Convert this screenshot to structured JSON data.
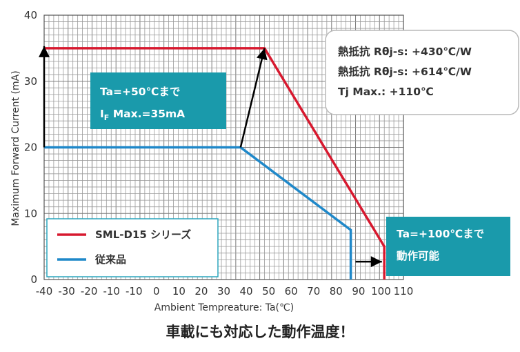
{
  "chart_data": {
    "type": "line",
    "title": "車載にも対応した動作温度！",
    "xlabel": "Ambient Tempreature: Ta(℃)",
    "ylabel": "Maximum Forward Current (mA)",
    "xlim": [
      -40,
      110
    ],
    "ylim": [
      0,
      40
    ],
    "x_ticks": [
      "-40",
      "-30",
      "-20",
      "-10",
      "-10",
      "0",
      "10",
      "20",
      "30",
      "40",
      "50",
      "60",
      "70",
      "80",
      "90",
      "100",
      "110"
    ],
    "y_ticks": [
      "0",
      "10",
      "20",
      "30",
      "40"
    ],
    "grid": true,
    "legend_position": "bottom-left",
    "series": [
      {
        "name": "SML-D15 シリーズ",
        "color": "#d7192f",
        "points": [
          [
            -40,
            35
          ],
          [
            52,
            35
          ],
          [
            102,
            5
          ],
          [
            102,
            0
          ]
        ]
      },
      {
        "name": "従来品",
        "color": "#1f88c9",
        "points": [
          [
            -40,
            20
          ],
          [
            42,
            20
          ],
          [
            88,
            7.5
          ],
          [
            88,
            0
          ]
        ]
      }
    ],
    "annotations": {
      "callout_left_line1": "Ta=+50℃まで",
      "callout_left_line2_main": "I",
      "callout_left_line2_sub": "F",
      "callout_left_line2_rest": " Max.=35mA",
      "callout_right_line1": "Ta=+100℃まで",
      "callout_right_line2": "動作可能",
      "info_line1": "熱抵抗 Rθj-s: +430℃/W",
      "info_line2": "熱抵抗 Rθj-s: +614℃/W",
      "info_line3": "Tj Max.: +110℃",
      "callout_color": "#1a9aab"
    }
  }
}
